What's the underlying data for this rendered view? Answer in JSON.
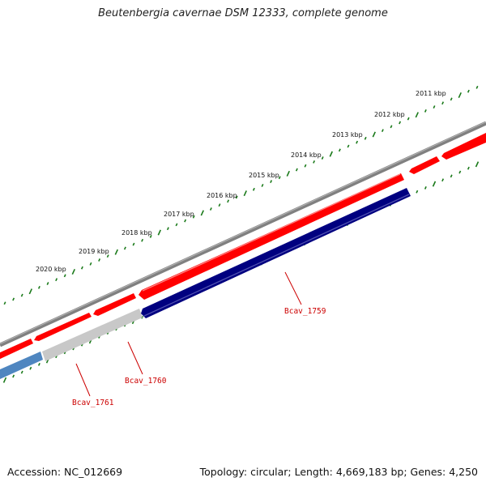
{
  "title": "Beutenbergia cavernae DSM 12333, complete genome",
  "footer": {
    "accession": "Accession: NC_012669",
    "summary": "Topology: circular; Length: 4,669,183 bp; Genes: 4,250"
  },
  "ruler": {
    "labels": [
      "2011 kbp",
      "2012 kbp",
      "2013 kbp",
      "2014 kbp",
      "2015 kbp",
      "2016 kbp",
      "2017 kbp",
      "2018 kbp",
      "2019 kbp",
      "2020 kbp"
    ]
  },
  "genes": [
    {
      "label": "Bcav_1759",
      "color": "#000080"
    },
    {
      "label": "Bcav_1760",
      "color": "#c8c8c8"
    },
    {
      "label": "Bcav_1761",
      "color": "#4f86c0"
    }
  ],
  "colors": {
    "backbone": "#808080",
    "forward_gene": "#ff0000",
    "tick": "#1a7a1a",
    "label": "#cc0000"
  }
}
